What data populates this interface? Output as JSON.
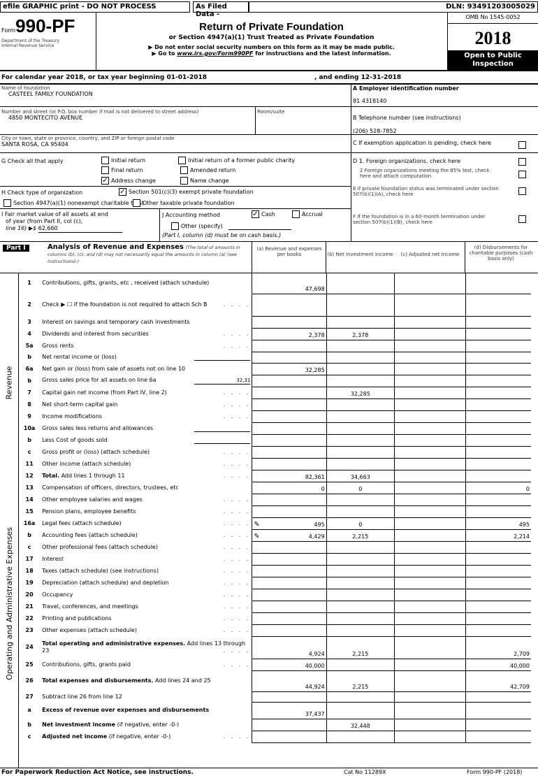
{
  "topbar": {
    "efile": "efile GRAPHIC print - DO NOT PROCESS",
    "filed": "As Filed Data -",
    "dln": "DLN: 93491203005029"
  },
  "header": {
    "form_prefix": "Form",
    "form_number": "990-PF",
    "dept1": "Department of the Treasury",
    "dept2": "Internal Revenue Service",
    "title": "Return of Private Foundation",
    "subtitle": "or Section 4947(a)(1) Trust Treated as Private Foundation",
    "note1": "▶ Do not enter social security numbers on this form as it may be made public.",
    "note2_pre": "▶ Go to ",
    "note2_link": "www.irs.gov/Form990PF",
    "note2_post": " for instructions and the latest information.",
    "omb": "OMB No 1545-0052",
    "year": "2018",
    "open": "Open to Public Inspection"
  },
  "calendar": {
    "begin": "For calendar year 2018, or tax year beginning 01-01-2018",
    "end": ", and ending 12-31-2018"
  },
  "org": {
    "name_label": "Name of foundation",
    "name": "CASTEEL FAMILY FOUNDATION",
    "street_label": "Number and street (or P.O. box number if mail is not delivered to street address)",
    "street": "4850 MONTECITO AVENUE",
    "room_label": "Room/suite",
    "city_label": "City or town, state or province, country, and ZIP or foreign postal code",
    "city": "SANTA ROSA, CA 95404",
    "ein_label": "A Employer identification number",
    "ein": "81 4318140",
    "phone_label": "B Telephone number (see instructions)",
    "phone": "(206) 528-7852"
  },
  "right": {
    "c": "C If exemption application is pending, check here",
    "d1": "D 1. Foreign organizations, check here",
    "d2": "2 Foreign organizations meeting the 85% test, check here and attach computation",
    "e": "E If private foundation status was terminated under section 507(b)(1)(A), check here",
    "f": "F If the foundation is in a 60-month termination under section 507(b)(1)(B), check here"
  },
  "g": {
    "label": "G Check all that apply",
    "opts": [
      {
        "t": "Initial return",
        "c": false
      },
      {
        "t": "Initial return of a former public charity",
        "c": false
      },
      {
        "t": "Final return",
        "c": false
      },
      {
        "t": "Amended return",
        "c": false
      },
      {
        "t": "Address change",
        "c": true
      },
      {
        "t": "Name change",
        "c": false
      }
    ]
  },
  "h": {
    "label": "H Check type of organization",
    "opt1": "Section 501(c)(3) exempt private foundation",
    "opt2": "Section 4947(a)(1) nonexempt charitable trust",
    "opt3": "Other taxable private foundation"
  },
  "i": {
    "l1": "I Fair market value of all assets at end",
    "l2": "of year (from Part II, col (c),",
    "l3": "line 16) ▶$",
    "value": "62,660"
  },
  "j": {
    "label": "J Accounting method",
    "cash": "Cash",
    "accrual": "Accrual",
    "other": "Other (specify)",
    "note": "(Part I, column (d) must be on cash basis.)"
  },
  "part1": {
    "tag": "Part I",
    "title": "Analysis of Revenue and Expenses",
    "title_note": "(The total of amounts in columns (b), (c), and (d) may not necessarily equal the amounts in column (a) (see instructions).)",
    "col_a": "(a) Revenue and expenses per books",
    "col_b": "(b) Net investment income",
    "col_c": "(c) Adjusted net income",
    "col_d": "(d) Disbursements for charitable purposes (cash basis only)",
    "side_rev": "Revenue",
    "side_exp": "Operating and Administrative Expenses",
    "rows": [
      {
        "n": "1",
        "l": "Contributions, gifts, grants, etc , received (attach schedule)",
        "a": "47,698",
        "h": 30
      },
      {
        "n": "2",
        "l": "Check ▶ ☐ if the foundation is not required to attach Sch B",
        "a": "",
        "h": 32,
        "dots": true
      },
      {
        "n": "3",
        "l": "Interest on savings and temporary cash investments",
        "h": 17
      },
      {
        "n": "4",
        "l": "Dividends and interest from securities",
        "a": "2,378",
        "b": "2,378",
        "h": 17,
        "dots": true
      },
      {
        "n": "5a",
        "l": "Gross rents",
        "h": 17,
        "dots": true
      },
      {
        "n": "b",
        "l": "Net rental income or (loss)",
        "h": 16,
        "inl": ""
      },
      {
        "n": "6a",
        "l": "Net gain or (loss) from sale of assets not on line 10",
        "a": "32,285",
        "h": 17
      },
      {
        "n": "b",
        "l": "Gross sales price for all assets on line 6a",
        "inl": "32,31",
        "h": 17
      },
      {
        "n": "7",
        "l": "Capital gain net income (from Part IV, line 2)",
        "b": "32,285",
        "h": 17,
        "dots": true
      },
      {
        "n": "8",
        "l": "Net short-term capital gain",
        "h": 17,
        "dots": true
      },
      {
        "n": "9",
        "l": "Income modifications",
        "h": 17,
        "dots": true
      },
      {
        "n": "10a",
        "l": "Gross sales less returns and allowances",
        "inl": "",
        "h": 17
      },
      {
        "n": "b",
        "l": "Less Cost of goods sold",
        "inl": "",
        "h": 17
      },
      {
        "n": "c",
        "l": "Gross profit or (loss) (attach schedule)",
        "h": 17,
        "dots": true
      },
      {
        "n": "11",
        "l": "Other income (attach schedule)",
        "h": 17,
        "dots": true
      },
      {
        "n": "12",
        "l": "Total. Add lines 1 through 11",
        "bold": "Total.",
        "a": "82,361",
        "b": "34,663",
        "h": 17,
        "dots": true
      },
      {
        "n": "13",
        "l": "Compensation of officers, directors, trustees, etc",
        "a": "0",
        "b": "0",
        "d": "0",
        "h": 17
      },
      {
        "n": "14",
        "l": "Other employee salaries and wages",
        "h": 17,
        "dots": true
      },
      {
        "n": "15",
        "l": "Pension plans, employee benefits",
        "h": 17,
        "dots": true
      },
      {
        "n": "16a",
        "l": "Legal fees (attach schedule)",
        "a": "495",
        "b": "0",
        "d": "495",
        "icon": true,
        "h": 17,
        "dots": true
      },
      {
        "n": "b",
        "l": "Accounting fees (attach schedule)",
        "a": "4,429",
        "b": "2,215",
        "d": "2,214",
        "icon": true,
        "h": 17,
        "dots": true
      },
      {
        "n": "c",
        "l": "Other professional fees (attach schedule)",
        "h": 17,
        "dots": true
      },
      {
        "n": "17",
        "l": "Interest",
        "h": 17,
        "dots": true
      },
      {
        "n": "18",
        "l": "Taxes (attach schedule) (see instructions)",
        "h": 17,
        "dots": true
      },
      {
        "n": "19",
        "l": "Depreciation (attach schedule) and depletion",
        "h": 17,
        "dots": true
      },
      {
        "n": "20",
        "l": "Occupancy",
        "h": 17,
        "dots": true
      },
      {
        "n": "21",
        "l": "Travel, conferences, and meetings",
        "h": 17,
        "dots": true
      },
      {
        "n": "22",
        "l": "Printing and publications",
        "h": 17,
        "dots": true
      },
      {
        "n": "23",
        "l": "Other expenses (attach schedule)",
        "h": 17,
        "dots": true
      },
      {
        "n": "24",
        "l": "Total operating and administrative expenses. Add lines 13 through 23",
        "bold": "Total operating and administrative expenses.",
        "a": "4,924",
        "b": "2,215",
        "d": "2,709",
        "h": 32,
        "dots": true
      },
      {
        "n": "25",
        "l": "Contributions, gifts, grants paid",
        "a": "40,000",
        "d": "40,000",
        "h": 17,
        "dots": true
      },
      {
        "n": "26",
        "l": "Total expenses and disbursements. Add lines 24 and 25",
        "bold": "Total expenses and disbursements.",
        "a": "44,924",
        "b": "2,215",
        "d": "42,709",
        "h": 30
      },
      {
        "n": "27",
        "l": "Subtract line 26 from line 12",
        "h": 15
      },
      {
        "n": "a",
        "l": "Excess of revenue over expenses and disbursements",
        "bold": "Excess of revenue over expenses and disbursements",
        "a": "37,437",
        "h": 24
      },
      {
        "n": "b",
        "l": "Net investment income (if negative, enter -0-)",
        "bold": "Net investment income",
        "b": "32,448",
        "h": 17
      },
      {
        "n": "c",
        "l": "Adjusted net income (if negative, enter -0-)",
        "bold": "Adjusted net income",
        "h": 17,
        "dots": true
      }
    ]
  },
  "footer": {
    "left": "For Paperwork Reduction Act Notice, see instructions.",
    "cat": "Cat No 11289X",
    "form": "Form 990-PF (2018)"
  }
}
